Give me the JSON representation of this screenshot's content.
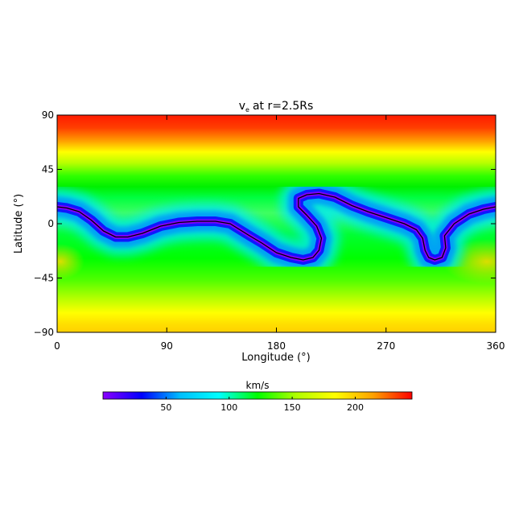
{
  "chart_data": {
    "type": "heatmap",
    "title_main": "v",
    "title_sub": "e",
    "title_rest": "at r=2.5Rs",
    "xlabel": "Longitude (°)",
    "ylabel": "Latitude (°)",
    "xlim": [
      0,
      360
    ],
    "ylim": [
      -90,
      90
    ],
    "xticks": [
      {
        "value": 0,
        "label": "0"
      },
      {
        "value": 90,
        "label": "90"
      },
      {
        "value": 180,
        "label": "180"
      },
      {
        "value": 270,
        "label": "270"
      },
      {
        "value": 360,
        "label": "360"
      }
    ],
    "yticks": [
      {
        "value": 90,
        "label": "90"
      },
      {
        "value": 45,
        "label": "45"
      },
      {
        "value": 0,
        "label": "0"
      },
      {
        "value": -45,
        "label": "−45"
      },
      {
        "value": -90,
        "label": "−90"
      }
    ],
    "colorbar": {
      "label": "km/s",
      "range": [
        0,
        245
      ],
      "ticks": [
        {
          "value": 50,
          "label": "50"
        },
        {
          "value": 100,
          "label": "100"
        },
        {
          "value": 150,
          "label": "150"
        },
        {
          "value": 200,
          "label": "200"
        }
      ],
      "colormap": [
        "#8a00ff",
        "#0000ff",
        "#00bfff",
        "#00ffff",
        "#00ff00",
        "#b0ff00",
        "#ffff00",
        "#ffa000",
        "#ff0000"
      ]
    },
    "neutral_line": [
      [
        0,
        14
      ],
      [
        8,
        13
      ],
      [
        18,
        10
      ],
      [
        28,
        3
      ],
      [
        38,
        -6
      ],
      [
        48,
        -11
      ],
      [
        58,
        -11
      ],
      [
        70,
        -8
      ],
      [
        85,
        -2
      ],
      [
        100,
        1
      ],
      [
        115,
        2
      ],
      [
        130,
        2
      ],
      [
        142,
        0
      ],
      [
        150,
        -5
      ],
      [
        158,
        -10
      ],
      [
        168,
        -16
      ],
      [
        180,
        -24
      ],
      [
        192,
        -28
      ],
      [
        202,
        -30
      ],
      [
        210,
        -28
      ],
      [
        215,
        -22
      ],
      [
        217,
        -12
      ],
      [
        213,
        -2
      ],
      [
        205,
        7
      ],
      [
        198,
        14
      ],
      [
        198,
        21
      ],
      [
        205,
        24
      ],
      [
        215,
        25
      ],
      [
        228,
        22
      ],
      [
        242,
        15
      ],
      [
        255,
        10
      ],
      [
        270,
        5
      ],
      [
        285,
        0
      ],
      [
        295,
        -5
      ],
      [
        300,
        -12
      ],
      [
        302,
        -22
      ],
      [
        305,
        -28
      ],
      [
        310,
        -30
      ],
      [
        316,
        -28
      ],
      [
        319,
        -20
      ],
      [
        318,
        -10
      ],
      [
        326,
        0
      ],
      [
        338,
        8
      ],
      [
        350,
        12
      ],
      [
        360,
        14
      ]
    ]
  }
}
